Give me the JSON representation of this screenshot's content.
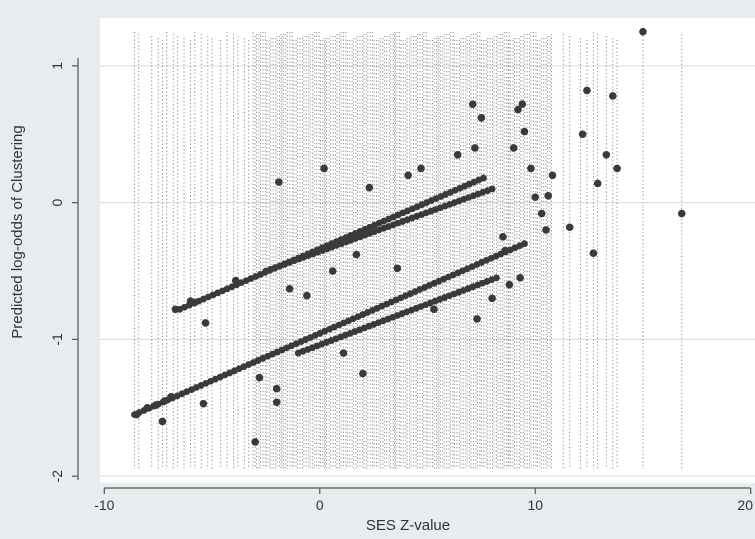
{
  "chart_data": {
    "type": "scatter",
    "title": "",
    "xlabel": "SES Z-value",
    "ylabel": "Predicted log-odds of Clustering",
    "xlim": [
      -10.2,
      20.2
    ],
    "ylim": [
      -2.05,
      1.35
    ],
    "xticks": [
      -10,
      0,
      10,
      20
    ],
    "yticks": [
      -2,
      -1,
      0,
      1
    ],
    "grid": true,
    "legend": "none",
    "colors": {
      "points": "#3a3a3a",
      "rug": "#6e6e6e",
      "grid": "#dcdcdc",
      "plot_bg": "#ffffff",
      "outer_bg": "#e8ecee",
      "axis": "#555555"
    },
    "lines": [
      {
        "x_start": -6.5,
        "x_end": 7.6,
        "y_start": -0.78,
        "y_end": 0.18
      },
      {
        "x_start": -8.6,
        "x_end": 9.5,
        "y_start": -1.55,
        "y_end": -0.3
      },
      {
        "x_start": -2.5,
        "x_end": 8.0,
        "y_start": -0.5,
        "y_end": 0.1
      },
      {
        "x_start": -1.0,
        "x_end": 8.2,
        "y_start": -1.1,
        "y_end": -0.55
      }
    ],
    "points": [
      {
        "x": -8.5,
        "y": -1.55
      },
      {
        "x": -8.0,
        "y": -1.5
      },
      {
        "x": -7.6,
        "y": -1.48
      },
      {
        "x": -7.2,
        "y": -1.45
      },
      {
        "x": -7.3,
        "y": -1.6
      },
      {
        "x": -6.9,
        "y": -1.42
      },
      {
        "x": -6.7,
        "y": -0.78
      },
      {
        "x": -6.0,
        "y": -0.72
      },
      {
        "x": -5.8,
        "y": -0.73
      },
      {
        "x": -5.4,
        "y": -1.47
      },
      {
        "x": -5.3,
        "y": -0.88
      },
      {
        "x": -3.9,
        "y": -0.57
      },
      {
        "x": -3.0,
        "y": -1.75
      },
      {
        "x": -2.8,
        "y": -1.28
      },
      {
        "x": -2.0,
        "y": -1.36
      },
      {
        "x": -2.0,
        "y": -1.46
      },
      {
        "x": -1.9,
        "y": 0.15
      },
      {
        "x": -1.4,
        "y": -0.63
      },
      {
        "x": -0.6,
        "y": -0.68
      },
      {
        "x": 0.2,
        "y": 0.25
      },
      {
        "x": 0.6,
        "y": -0.5
      },
      {
        "x": 1.1,
        "y": -1.1
      },
      {
        "x": 1.7,
        "y": -0.38
      },
      {
        "x": 2.0,
        "y": -1.25
      },
      {
        "x": 2.3,
        "y": 0.11
      },
      {
        "x": 3.6,
        "y": -0.48
      },
      {
        "x": 4.1,
        "y": 0.2
      },
      {
        "x": 4.7,
        "y": 0.25
      },
      {
        "x": 5.3,
        "y": -0.78
      },
      {
        "x": 6.4,
        "y": 0.35
      },
      {
        "x": 7.1,
        "y": 0.72
      },
      {
        "x": 7.2,
        "y": 0.4
      },
      {
        "x": 7.5,
        "y": 0.62
      },
      {
        "x": 7.3,
        "y": -0.85
      },
      {
        "x": 8.0,
        "y": -0.7
      },
      {
        "x": 8.5,
        "y": -0.25
      },
      {
        "x": 8.6,
        "y": -0.35
      },
      {
        "x": 8.8,
        "y": -0.6
      },
      {
        "x": 9.0,
        "y": 0.4
      },
      {
        "x": 9.2,
        "y": 0.68
      },
      {
        "x": 9.3,
        "y": -0.55
      },
      {
        "x": 9.4,
        "y": 0.72
      },
      {
        "x": 9.5,
        "y": 0.52
      },
      {
        "x": 9.8,
        "y": 0.25
      },
      {
        "x": 10.0,
        "y": 0.04
      },
      {
        "x": 10.3,
        "y": -0.08
      },
      {
        "x": 10.5,
        "y": -0.2
      },
      {
        "x": 10.6,
        "y": 0.05
      },
      {
        "x": 10.8,
        "y": 0.2
      },
      {
        "x": 11.6,
        "y": -0.18
      },
      {
        "x": 12.2,
        "y": 0.5
      },
      {
        "x": 12.4,
        "y": 0.82
      },
      {
        "x": 12.7,
        "y": -0.37
      },
      {
        "x": 12.9,
        "y": 0.14
      },
      {
        "x": 13.3,
        "y": 0.35
      },
      {
        "x": 13.6,
        "y": 0.78
      },
      {
        "x": 13.8,
        "y": 0.25
      },
      {
        "x": 15.0,
        "y": 1.25
      },
      {
        "x": 16.8,
        "y": -0.08
      }
    ],
    "rug_x": [
      -8.6,
      -8.4,
      -7.8,
      -7.5,
      -7.3,
      -7.1,
      -6.8,
      -6.6,
      -6.3,
      -6.0,
      -5.8,
      -5.5,
      -5.2,
      -5.0,
      -4.6,
      -4.3,
      -4.0,
      -3.8,
      -3.5,
      -3.3,
      -3.1,
      11.3,
      11.6,
      12.1,
      12.4,
      12.7,
      12.9,
      13.3,
      13.6,
      13.8,
      15.0,
      16.8
    ],
    "rug_dense_range": [
      -3.0,
      10.8
    ],
    "rug_dense_count": 150
  }
}
